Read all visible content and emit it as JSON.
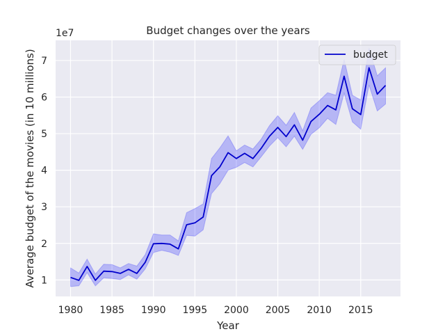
{
  "chart_data": {
    "type": "line",
    "title": "Budget changes over the years",
    "xlabel": "Year",
    "ylabel": "Average budget of the movies (in 10 millions)",
    "y_offset_label": "1e7",
    "xlim": [
      1978.2,
      2019.8
    ],
    "ylim": [
      5500000,
      75500000
    ],
    "x_ticks": [
      1980,
      1985,
      1990,
      1995,
      2000,
      2005,
      2010,
      2015
    ],
    "y_ticks": [
      10000000,
      20000000,
      30000000,
      40000000,
      50000000,
      60000000,
      70000000
    ],
    "y_tick_labels": [
      "1",
      "2",
      "3",
      "4",
      "5",
      "6",
      "7"
    ],
    "grid": true,
    "legend_position": "top-right",
    "colors": {
      "line": "#0000cc",
      "band": "#0000ff",
      "panel": "#eaeaf2",
      "grid": "#ffffff"
    },
    "series": [
      {
        "name": "budget",
        "x": [
          1980,
          1981,
          1982,
          1983,
          1984,
          1985,
          1986,
          1987,
          1988,
          1989,
          1990,
          1991,
          1992,
          1993,
          1994,
          1995,
          1996,
          1997,
          1998,
          1999,
          2000,
          2001,
          2002,
          2003,
          2004,
          2005,
          2006,
          2007,
          2008,
          2009,
          2010,
          2011,
          2012,
          2013,
          2014,
          2015,
          2016,
          2017,
          2018
        ],
        "y": [
          10700000,
          9900000,
          13700000,
          9900000,
          12400000,
          12300000,
          11800000,
          12900000,
          11800000,
          14800000,
          19900000,
          20000000,
          19800000,
          18500000,
          25100000,
          25600000,
          27200000,
          38500000,
          40900000,
          44800000,
          43200000,
          44600000,
          43200000,
          46000000,
          49300000,
          51700000,
          49200000,
          52400000,
          48200000,
          53300000,
          55300000,
          57700000,
          56500000,
          65700000,
          56800000,
          55200000,
          68000000,
          60800000,
          63200000
        ],
        "ci_lower": [
          8200000,
          8400000,
          12000000,
          8400000,
          10600000,
          10400000,
          10100000,
          11400000,
          10200000,
          13000000,
          17500000,
          18100000,
          17600000,
          16700000,
          22200000,
          22000000,
          23700000,
          33600000,
          36300000,
          40000000,
          40800000,
          42100000,
          40900000,
          43700000,
          46600000,
          48900000,
          46400000,
          49300000,
          45700000,
          49800000,
          51600000,
          54200000,
          52500000,
          61100000,
          53200000,
          51200000,
          63300000,
          56200000,
          58100000
        ],
        "ci_upper": [
          13300000,
          11900000,
          15700000,
          11600000,
          14300000,
          14200000,
          13300000,
          14500000,
          13800000,
          16900000,
          22600000,
          22300000,
          22300000,
          20700000,
          28400000,
          29500000,
          30800000,
          43200000,
          46100000,
          49400000,
          45300000,
          46900000,
          45800000,
          48500000,
          52200000,
          54900000,
          52300000,
          55800000,
          50800000,
          57000000,
          59000000,
          61200000,
          60500000,
          70300000,
          60500000,
          59200000,
          73400000,
          65800000,
          68000000
        ]
      }
    ]
  }
}
